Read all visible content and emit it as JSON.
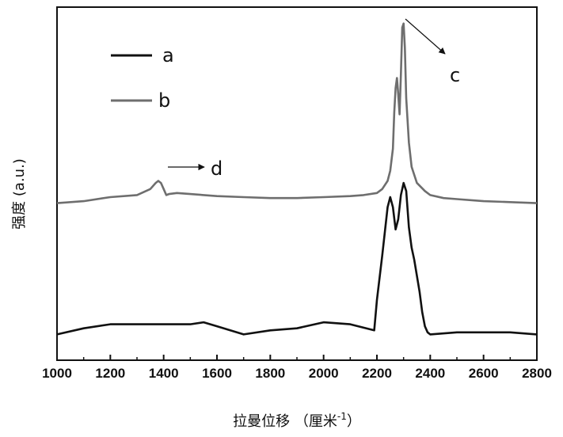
{
  "chart_data": {
    "type": "line",
    "xlabel": "拉曼位移 （厘米",
    "xlabel_sup": "-1",
    "xlabel_close": "）",
    "ylabel": "强度 (a.u.)",
    "xlim": [
      1000,
      2800
    ],
    "xticks": [
      "1000",
      "1200",
      "1400",
      "1600",
      "1800",
      "2000",
      "2200",
      "2400",
      "2600",
      "2800"
    ],
    "grid": false,
    "legend_position": "top-left",
    "series": [
      {
        "name": "a",
        "color": "#111111",
        "x": [
          1000,
          1100,
          1200,
          1300,
          1400,
          1500,
          1550,
          1600,
          1700,
          1800,
          1900,
          2000,
          2100,
          2190,
          2200,
          2220,
          2240,
          2250,
          2260,
          2270,
          2280,
          2290,
          2300,
          2310,
          2320,
          2330,
          2340,
          2350,
          2360,
          2370,
          2380,
          2390,
          2400,
          2500,
          2600,
          2700,
          2800
        ],
        "y": [
          0.03,
          0.06,
          0.08,
          0.08,
          0.08,
          0.08,
          0.09,
          0.07,
          0.03,
          0.05,
          0.06,
          0.09,
          0.08,
          0.05,
          0.2,
          0.42,
          0.66,
          0.71,
          0.66,
          0.55,
          0.6,
          0.72,
          0.78,
          0.74,
          0.56,
          0.46,
          0.4,
          0.32,
          0.24,
          0.14,
          0.07,
          0.04,
          0.03,
          0.04,
          0.04,
          0.04,
          0.03
        ]
      },
      {
        "name": "b",
        "color": "#6e6e6e",
        "x": [
          1000,
          1100,
          1200,
          1300,
          1350,
          1370,
          1380,
          1390,
          1400,
          1410,
          1420,
          1450,
          1500,
          1600,
          1700,
          1800,
          1900,
          2000,
          2100,
          2150,
          2200,
          2220,
          2240,
          2250,
          2260,
          2265,
          2270,
          2275,
          2280,
          2285,
          2290,
          2295,
          2300,
          2305,
          2310,
          2320,
          2330,
          2350,
          2380,
          2400,
          2450,
          2500,
          2600,
          2700,
          2800
        ],
        "y": [
          0.68,
          0.69,
          0.71,
          0.72,
          0.75,
          0.78,
          0.79,
          0.78,
          0.75,
          0.72,
          0.725,
          0.73,
          0.725,
          0.715,
          0.71,
          0.705,
          0.705,
          0.71,
          0.715,
          0.72,
          0.73,
          0.75,
          0.79,
          0.84,
          0.95,
          1.13,
          1.25,
          1.3,
          1.22,
          1.12,
          1.32,
          1.55,
          1.57,
          1.45,
          1.2,
          0.98,
          0.86,
          0.78,
          0.74,
          0.72,
          0.705,
          0.7,
          0.69,
          0.685,
          0.68
        ]
      }
    ],
    "annotations": [
      {
        "label": "c",
        "x": 2300
      },
      {
        "label": "d",
        "x": 1390
      }
    ]
  }
}
